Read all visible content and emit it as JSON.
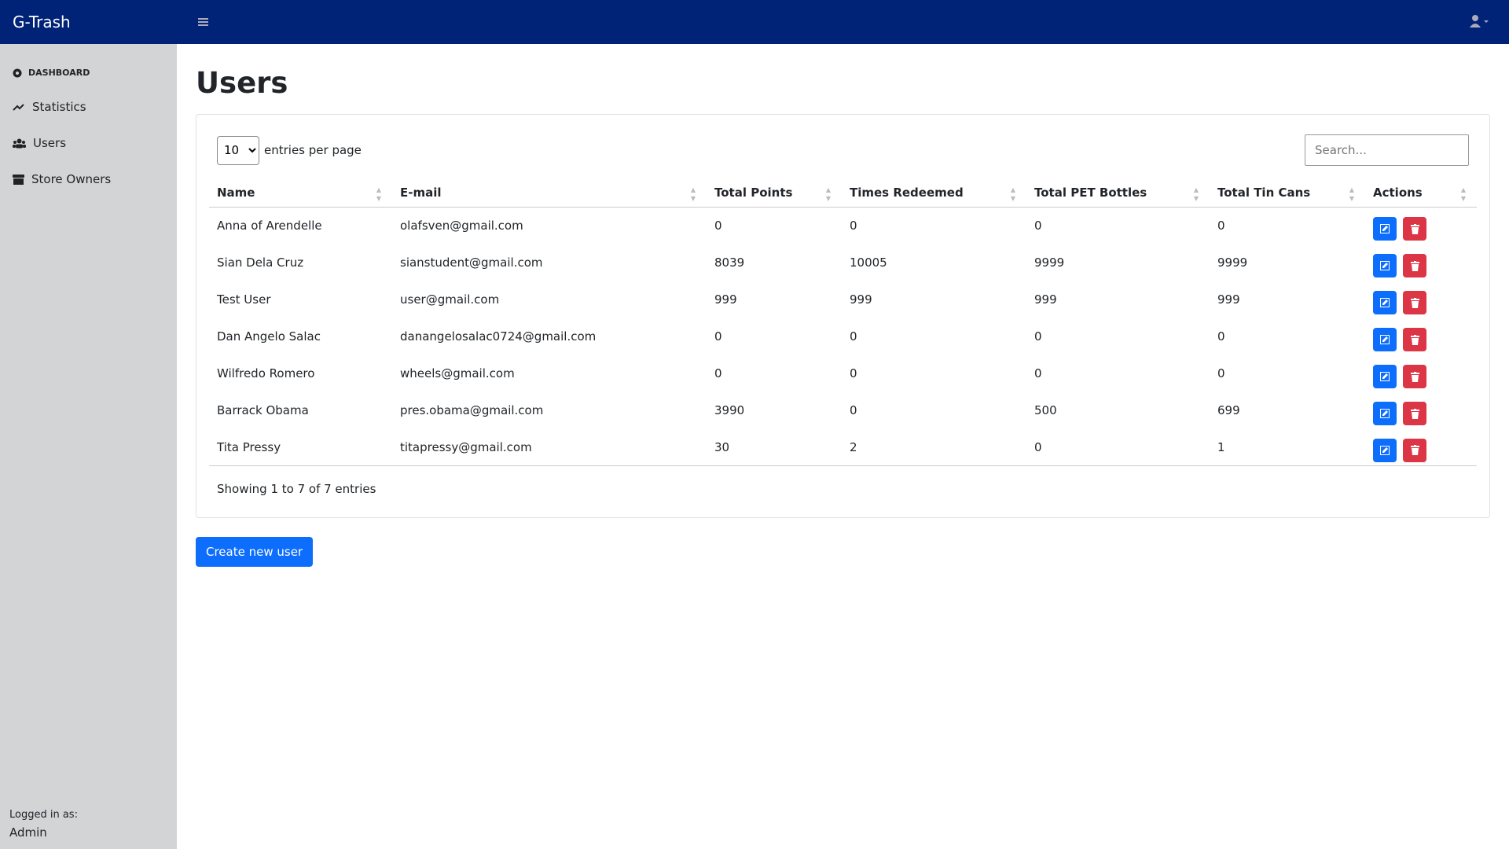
{
  "navbar": {
    "brand": "G-Trash"
  },
  "sidebar": {
    "heading": "DASHBOARD",
    "items": [
      "Statistics",
      "Users",
      "Store Owners"
    ],
    "footer_label": "Logged in as:",
    "footer_user": "Admin"
  },
  "main": {
    "title": "Users",
    "datatable": {
      "per_page": "10",
      "per_page_label": "entries per page",
      "search_placeholder": "Search...",
      "columns": [
        "Name",
        "E-mail",
        "Total Points",
        "Times Redeemed",
        "Total PET Bottles",
        "Total Tin Cans",
        "Actions"
      ],
      "rows": [
        [
          "Anna of Arendelle",
          "olafsven@gmail.com",
          0,
          0,
          0,
          0
        ],
        [
          "Sian Dela Cruz",
          "sianstudent@gmail.com",
          8039,
          10005,
          9999,
          9999
        ],
        [
          "Test User",
          "user@gmail.com",
          999,
          999,
          999,
          999
        ],
        [
          "Dan Angelo Salac",
          "danangelosalac0724@gmail.com",
          0,
          0,
          0,
          0
        ],
        [
          "Wilfredo Romero",
          "wheels@gmail.com",
          0,
          0,
          0,
          0
        ],
        [
          "Barrack Obama",
          "pres.obama@gmail.com",
          3990,
          0,
          500,
          699
        ],
        [
          "Tita Pressy",
          "titapressy@gmail.com",
          30,
          2,
          0,
          1
        ]
      ],
      "info": "Showing 1 to 7 of 7 entries"
    },
    "create_button": "Create new user"
  }
}
